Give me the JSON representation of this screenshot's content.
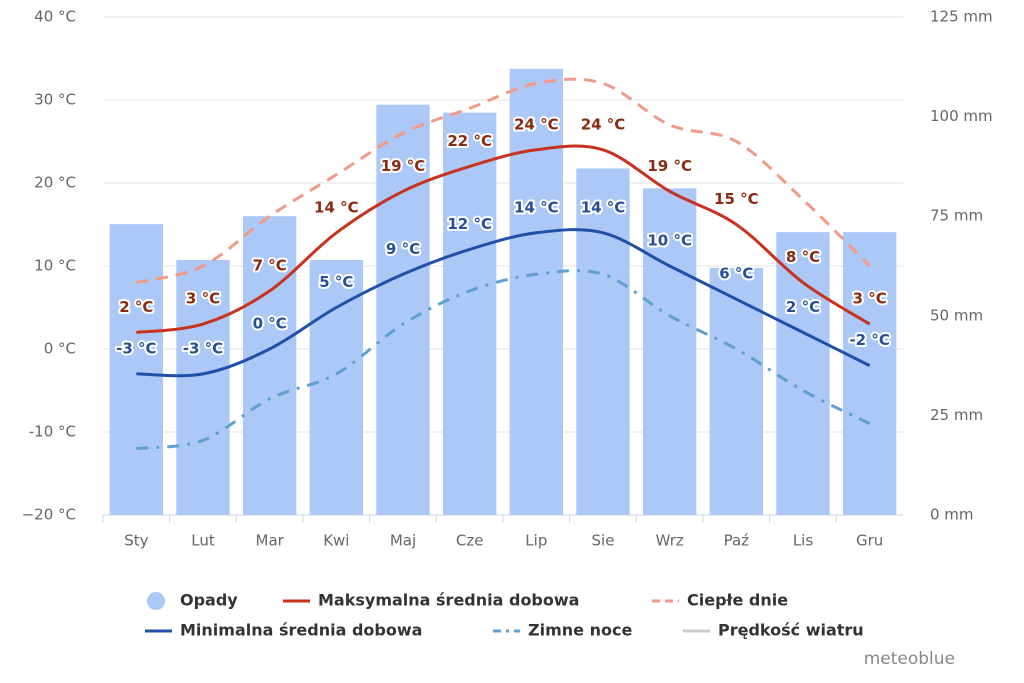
{
  "chart_data": {
    "type": "climate",
    "categories": [
      "Sty",
      "Lut",
      "Mar",
      "Kwi",
      "Maj",
      "Cze",
      "Lip",
      "Sie",
      "Wrz",
      "Paź",
      "Lis",
      "Gru"
    ],
    "ylim": [
      -20,
      40
    ],
    "yticks": [
      {
        "value": -20,
        "label": "−20 °C"
      },
      {
        "value": -10,
        "label": "-10 °C"
      },
      {
        "value": 0,
        "label": "0 °C"
      },
      {
        "value": 10,
        "label": "10 °C"
      },
      {
        "value": 20,
        "label": "20 °C"
      },
      {
        "value": 30,
        "label": "30 °C"
      },
      {
        "value": 40,
        "label": "40 °C"
      }
    ],
    "y2lim": [
      0,
      125
    ],
    "y2ticks": [
      {
        "value": 0,
        "label": "0 mm"
      },
      {
        "value": 25,
        "label": "25 mm"
      },
      {
        "value": 50,
        "label": "50 mm"
      },
      {
        "value": 75,
        "label": "75 mm"
      },
      {
        "value": 100,
        "label": "100 mm"
      },
      {
        "value": 125,
        "label": "125 mm"
      }
    ],
    "grid": true,
    "series": [
      {
        "name": "Opady",
        "kind": "bar",
        "axis": "y2",
        "color": "#abc8f7",
        "values": [
          73,
          64,
          75,
          64,
          103,
          101,
          112,
          87,
          82,
          62,
          71,
          71
        ]
      },
      {
        "name": "Maksymalna średnia dobowa",
        "kind": "line",
        "color": "#c8321e",
        "label_color": "#8b2a12",
        "values": [
          2,
          3,
          7,
          14,
          19,
          22,
          24,
          24,
          19,
          15,
          8,
          3
        ],
        "value_labels": [
          "2 °C",
          "3 °C",
          "7 °C",
          "14 °C",
          "19 °C",
          "22 °C",
          "24 °C",
          "24 °C",
          "19 °C",
          "15 °C",
          "8 °C",
          "3 °C"
        ]
      },
      {
        "name": "Ciepłe dnie",
        "kind": "dashed",
        "color": "#f29a88",
        "values": [
          8,
          10,
          16,
          21,
          26,
          29,
          32,
          32,
          27,
          25,
          18,
          10
        ]
      },
      {
        "name": "Minimalna średnia dobowa",
        "kind": "line",
        "color": "#2250a8",
        "label_color": "#2a4f9a",
        "values": [
          -3,
          -3,
          0,
          5,
          9,
          12,
          14,
          14,
          10,
          6,
          2,
          -2
        ],
        "value_labels": [
          "-3 °C",
          "-3 °C",
          "0 °C",
          "5 °C",
          "9 °C",
          "12 °C",
          "14 °C",
          "14 °C",
          "10 °C",
          "6 °C",
          "2 °C",
          "-2 °C"
        ]
      },
      {
        "name": "Zimne noce",
        "kind": "dashdot",
        "color": "#5fa0d0",
        "values": [
          -12,
          -11,
          -6,
          -3,
          3,
          7,
          9,
          9,
          4,
          0,
          -5,
          -9
        ]
      },
      {
        "name": "Prędkość wiatru",
        "kind": "hidden",
        "color": "#cccccc"
      }
    ],
    "credit": "meteoblue"
  }
}
